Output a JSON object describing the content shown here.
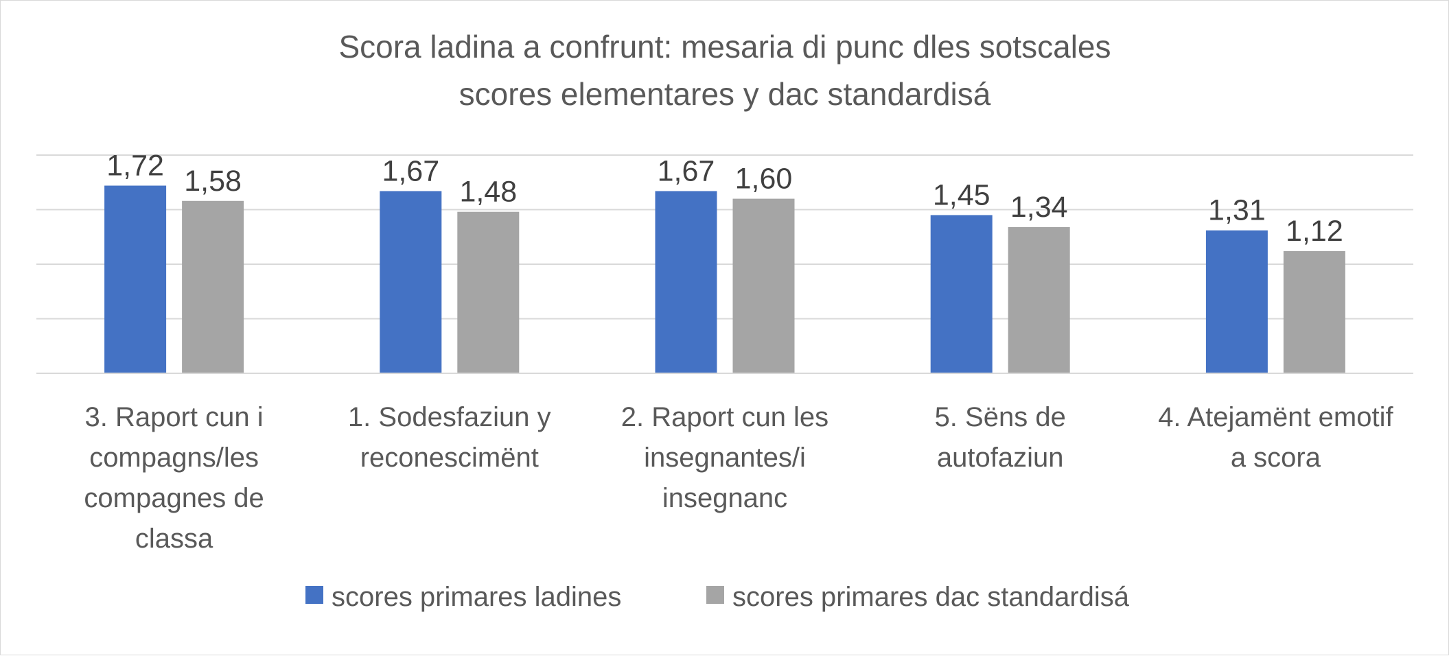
{
  "chart_data": {
    "type": "bar",
    "title_lines": [
      "Scora ladina a confrunt: mesaria di punc dles sotscales",
      "scores elementares y dac standardisá"
    ],
    "categories": [
      [
        "3. Raport cun i",
        "compagns/les",
        "compagnes de",
        "classa"
      ],
      [
        "1. Sodesfaziun y",
        "reconescimënt"
      ],
      [
        "2. Raport cun les",
        "insegnantes/i",
        "insegnanc"
      ],
      [
        "5. Sëns de",
        "autofaziun"
      ],
      [
        "4. Atejamënt emotif",
        "a scora"
      ]
    ],
    "series": [
      {
        "name": "scores primares ladines",
        "color": "#4472c4",
        "values": [
          1.72,
          1.67,
          1.67,
          1.45,
          1.31
        ],
        "labels": [
          "1,72",
          "1,67",
          "1,67",
          "1,45",
          "1,31"
        ]
      },
      {
        "name": "scores primares dac standardisá",
        "color": "#a5a5a5",
        "values": [
          1.58,
          1.48,
          1.6,
          1.34,
          1.12
        ],
        "labels": [
          "1,58",
          "1,48",
          "1,60",
          "1,34",
          "1,12"
        ]
      }
    ],
    "ylim": [
      0,
      2
    ],
    "grid": true,
    "legend_position": "bottom"
  }
}
